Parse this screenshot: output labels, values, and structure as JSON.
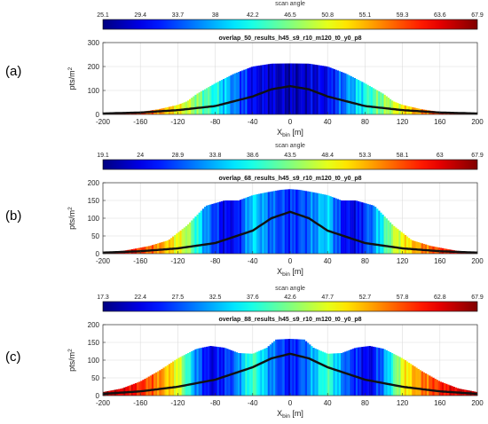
{
  "panels": [
    {
      "letter": "(a)",
      "colorbar": {
        "label": "scan angle",
        "min": 25.1,
        "max": 67.9,
        "ticks": [
          "25.1",
          "29.4",
          "33.7",
          "38",
          "42.2",
          "46.5",
          "50.8",
          "55.1",
          "59.3",
          "63.6",
          "67.9"
        ]
      },
      "plot_title": "overlap_50_results_h45_s9_r10_m120_t0_y0_p8"
    },
    {
      "letter": "(b)",
      "colorbar": {
        "label": "scan angle",
        "min": 19.1,
        "max": 67.9,
        "ticks": [
          "19.1",
          "24",
          "28.9",
          "33.8",
          "38.6",
          "43.5",
          "48.4",
          "53.3",
          "58.1",
          "63",
          "67.9"
        ]
      },
      "plot_title": "overlap_68_results_h45_s9_r10_m120_t0_y0_p8"
    },
    {
      "letter": "(c)",
      "colorbar": {
        "label": "scan angle",
        "min": 17.3,
        "max": 67.9,
        "ticks": [
          "17.3",
          "22.4",
          "27.5",
          "32.5",
          "37.6",
          "42.6",
          "47.7",
          "52.7",
          "57.8",
          "62.8",
          "67.9"
        ]
      },
      "plot_title": "overlap_88_results_h45_s9_r10_m120_t0_y0_p8"
    }
  ],
  "chart_data": [
    {
      "type": "bar",
      "title": "overlap_50_results_h45_s9_r10_m120_t0_y0_p8",
      "xlabel": "X_bin [m]",
      "ylabel": "pts/m^2",
      "xlim": [
        -200,
        200
      ],
      "ylim": [
        0,
        300
      ],
      "xticks": [
        -200,
        -160,
        -120,
        -80,
        -40,
        0,
        40,
        80,
        120,
        160,
        200
      ],
      "yticks": [
        0,
        100,
        200,
        300
      ],
      "grid": true,
      "bars_density": {
        "x": [
          -200,
          -180,
          -160,
          -140,
          -120,
          -110,
          -100,
          -80,
          -60,
          -40,
          -20,
          0,
          20,
          40,
          60,
          80,
          100,
          110,
          120,
          140,
          160,
          180,
          200
        ],
        "y": [
          2,
          4,
          10,
          22,
          40,
          55,
          85,
          130,
          170,
          200,
          212,
          213,
          212,
          200,
          170,
          130,
          85,
          55,
          40,
          22,
          10,
          4,
          2
        ]
      },
      "curve": {
        "x": [
          -200,
          -160,
          -120,
          -80,
          -40,
          -20,
          0,
          20,
          40,
          80,
          120,
          160,
          200
        ],
        "y": [
          4,
          8,
          18,
          35,
          75,
          105,
          118,
          105,
          75,
          35,
          18,
          8,
          4
        ]
      },
      "bar_color_encodes": "scan angle",
      "bar_colors": {
        "x": [
          -200,
          -160,
          -120,
          -80,
          -40,
          0,
          40,
          80,
          120,
          160,
          200
        ],
        "angle": [
          65,
          61,
          52,
          42,
          30,
          27,
          30,
          42,
          52,
          61,
          65
        ]
      }
    },
    {
      "type": "bar",
      "title": "overlap_68_results_h45_s9_r10_m120_t0_y0_p8",
      "xlabel": "X_bin [m]",
      "ylabel": "pts/m^2",
      "xlim": [
        -200,
        200
      ],
      "ylim": [
        0,
        200
      ],
      "xticks": [
        -200,
        -160,
        -120,
        -80,
        -40,
        0,
        40,
        80,
        120,
        160,
        200
      ],
      "yticks": [
        0,
        50,
        100,
        150,
        200
      ],
      "grid": true,
      "bars_density": {
        "x": [
          -200,
          -185,
          -170,
          -150,
          -130,
          -110,
          -90,
          -70,
          -55,
          -40,
          -25,
          -10,
          0,
          10,
          25,
          40,
          55,
          70,
          90,
          110,
          130,
          150,
          170,
          185,
          200
        ],
        "y": [
          2,
          5,
          12,
          22,
          38,
          80,
          135,
          150,
          150,
          165,
          173,
          180,
          182,
          180,
          173,
          165,
          150,
          150,
          135,
          80,
          38,
          22,
          12,
          5,
          2
        ]
      },
      "curve": {
        "x": [
          -200,
          -160,
          -120,
          -80,
          -40,
          -20,
          0,
          20,
          40,
          80,
          120,
          160,
          200
        ],
        "y": [
          3,
          7,
          15,
          30,
          65,
          100,
          118,
          100,
          65,
          30,
          15,
          7,
          3
        ]
      },
      "bar_color_encodes": "scan angle",
      "bar_colors": {
        "x": [
          -200,
          -180,
          -140,
          -110,
          -90,
          -70,
          -55,
          -40,
          -20,
          0,
          20,
          40,
          55,
          70,
          90,
          110,
          140,
          180,
          200
        ],
        "angle": [
          66,
          63,
          55,
          46,
          32,
          24,
          26,
          36,
          30,
          27,
          30,
          36,
          26,
          24,
          32,
          46,
          55,
          63,
          66
        ]
      }
    },
    {
      "type": "bar",
      "title": "overlap_88_results_h45_s9_r10_m120_t0_y0_p8",
      "xlabel": "X_bin [m]",
      "ylabel": "pts/m^2",
      "xlim": [
        -200,
        200
      ],
      "ylim": [
        0,
        200
      ],
      "xticks": [
        -200,
        -160,
        -120,
        -80,
        -40,
        0,
        40,
        80,
        120,
        160,
        200
      ],
      "yticks": [
        0,
        50,
        100,
        150,
        200
      ],
      "grid": true,
      "bars_density": {
        "x": [
          -200,
          -180,
          -160,
          -140,
          -120,
          -100,
          -85,
          -70,
          -55,
          -40,
          -25,
          -15,
          0,
          15,
          25,
          40,
          55,
          70,
          85,
          100,
          120,
          140,
          160,
          180,
          200
        ],
        "y": [
          10,
          20,
          40,
          70,
          105,
          132,
          140,
          135,
          120,
          118,
          135,
          158,
          160,
          158,
          135,
          118,
          120,
          135,
          140,
          132,
          105,
          70,
          40,
          20,
          10
        ]
      },
      "curve": {
        "x": [
          -200,
          -160,
          -120,
          -80,
          -40,
          -20,
          0,
          20,
          40,
          80,
          120,
          160,
          200
        ],
        "y": [
          5,
          12,
          25,
          45,
          80,
          105,
          118,
          105,
          80,
          45,
          25,
          12,
          5
        ]
      },
      "bar_color_encodes": "scan angle",
      "bar_colors": {
        "x": [
          -200,
          -170,
          -140,
          -120,
          -100,
          -85,
          -60,
          -40,
          -20,
          0,
          20,
          40,
          60,
          85,
          100,
          120,
          140,
          170,
          200
        ],
        "angle": [
          66,
          62,
          55,
          48,
          30,
          22,
          28,
          40,
          30,
          24,
          30,
          40,
          28,
          22,
          30,
          48,
          55,
          62,
          66
        ]
      }
    }
  ]
}
